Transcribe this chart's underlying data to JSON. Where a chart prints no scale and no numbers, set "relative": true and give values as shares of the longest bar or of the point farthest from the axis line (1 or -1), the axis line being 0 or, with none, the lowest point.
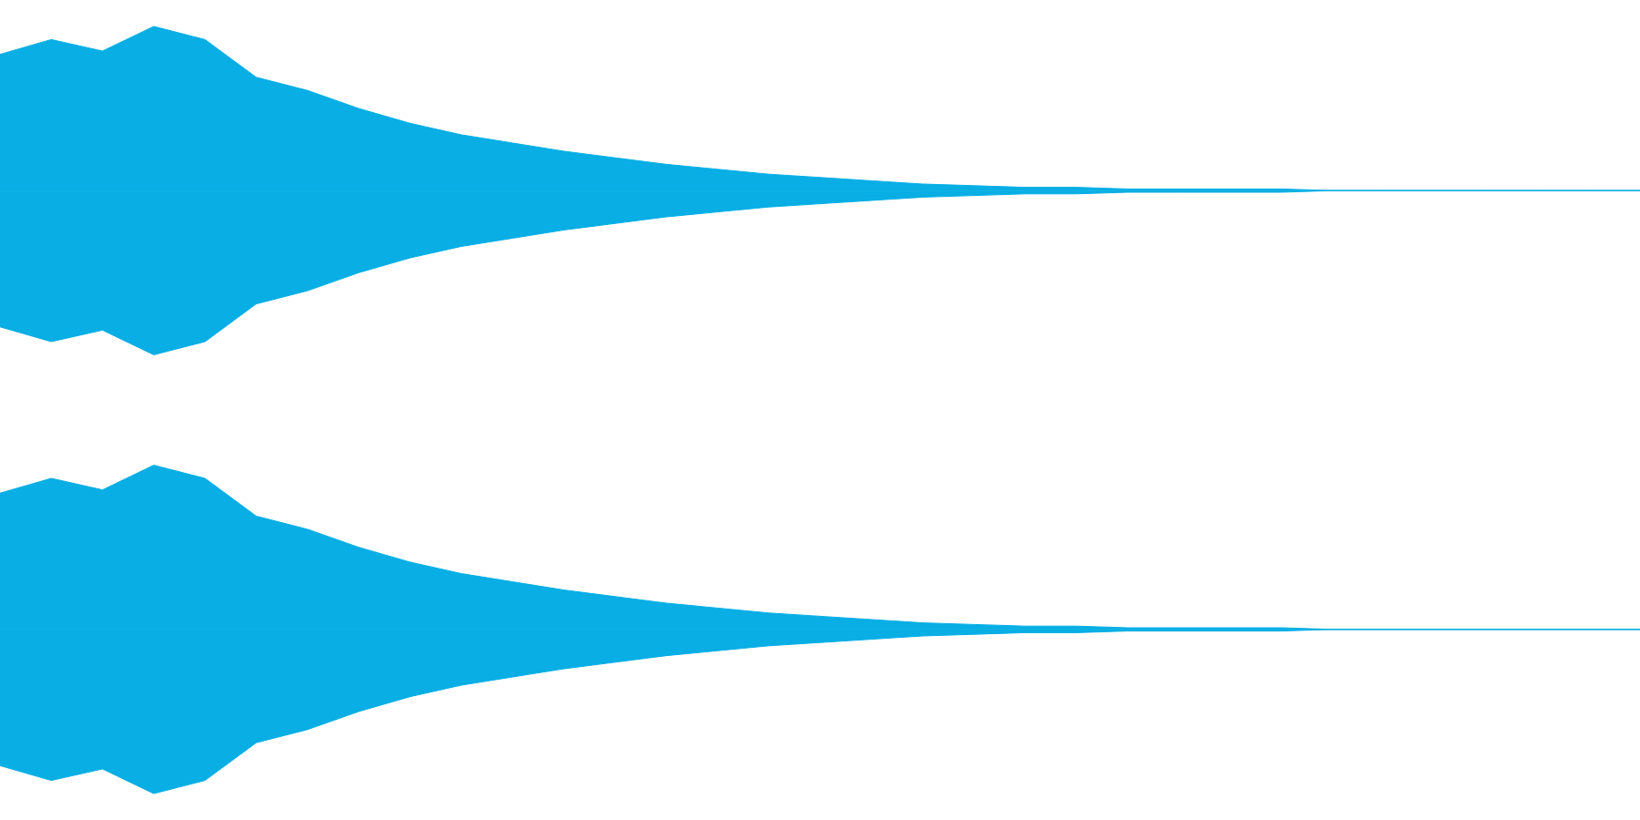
{
  "chart_data": [
    {
      "type": "area",
      "relative": true,
      "ref_lines": [
        {
          "axis": "y",
          "value": 0,
          "color": "#08aee4"
        }
      ],
      "categories": [
        null,
        null,
        null,
        null,
        null,
        null,
        null,
        null,
        null,
        null,
        null,
        null,
        null,
        null,
        null,
        null,
        null,
        null,
        null,
        null,
        null,
        null,
        null,
        null,
        null,
        null,
        null,
        null,
        null,
        null,
        null,
        null,
        null
      ],
      "series": [
        {
          "color": "#08aee4",
          "values": [
            0.83,
            0.92,
            0.85,
            1.0,
            0.92,
            0.69,
            0.61,
            0.5,
            0.41,
            0.34,
            0.29,
            0.24,
            0.2,
            0.16,
            0.13,
            0.1,
            0.08,
            0.06,
            0.04,
            0.03,
            0.02,
            0.02,
            0.01,
            0.01,
            0.01,
            0.01,
            0,
            0,
            0,
            0,
            0,
            0,
            0
          ]
        },
        {
          "color": "#08aee4",
          "values": [
            -0.83,
            -0.92,
            -0.85,
            -1.0,
            -0.92,
            -0.69,
            -0.61,
            -0.5,
            -0.41,
            -0.34,
            -0.29,
            -0.24,
            -0.2,
            -0.16,
            -0.13,
            -0.1,
            -0.08,
            -0.06,
            -0.04,
            -0.03,
            -0.02,
            -0.02,
            -0.01,
            -0.01,
            -0.01,
            -0.01,
            0,
            0,
            0,
            0,
            0,
            0,
            0
          ]
        }
      ]
    },
    {
      "type": "area",
      "relative": true,
      "ref_lines": [
        {
          "axis": "y",
          "value": 0,
          "color": "#08aee4"
        }
      ],
      "categories": [
        null,
        null,
        null,
        null,
        null,
        null,
        null,
        null,
        null,
        null,
        null,
        null,
        null,
        null,
        null,
        null,
        null,
        null,
        null,
        null,
        null,
        null,
        null,
        null,
        null,
        null,
        null,
        null,
        null,
        null,
        null,
        null,
        null
      ],
      "series": [
        {
          "color": "#08aee4",
          "values": [
            0.83,
            0.92,
            0.85,
            1.0,
            0.92,
            0.69,
            0.61,
            0.5,
            0.41,
            0.34,
            0.29,
            0.24,
            0.2,
            0.16,
            0.13,
            0.1,
            0.08,
            0.06,
            0.04,
            0.03,
            0.02,
            0.02,
            0.01,
            0.01,
            0.01,
            0.01,
            0,
            0,
            0,
            0,
            0,
            0,
            0
          ]
        },
        {
          "color": "#08aee4",
          "values": [
            -0.83,
            -0.92,
            -0.85,
            -1.0,
            -0.92,
            -0.69,
            -0.61,
            -0.5,
            -0.41,
            -0.34,
            -0.29,
            -0.24,
            -0.2,
            -0.16,
            -0.13,
            -0.1,
            -0.08,
            -0.06,
            -0.04,
            -0.03,
            -0.02,
            -0.02,
            -0.01,
            -0.01,
            -0.01,
            -0.01,
            0,
            0,
            0,
            0,
            0,
            0,
            0
          ]
        }
      ]
    }
  ]
}
